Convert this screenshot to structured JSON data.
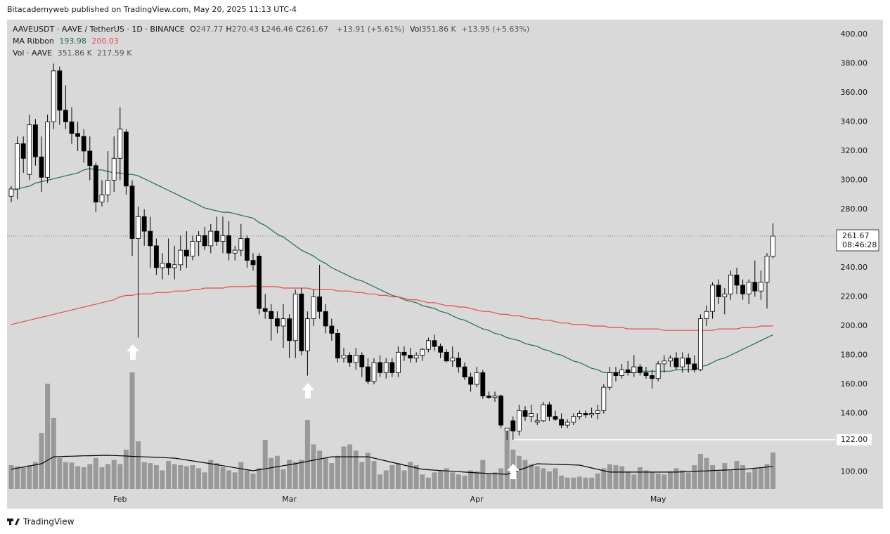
{
  "chart_data": {
    "type": "candlestick",
    "published": "Bitacademyweb published on TradingView.com, May 20, 2025 11:13 UTC-4",
    "symbol": "AAVEUSDT · AAVE / TetherUS · 1D · BINANCE",
    "ohlc_legend": [
      {
        "key": "O",
        "value": "247.77"
      },
      {
        "key": "H",
        "value": "270.43"
      },
      {
        "key": "L",
        "value": "246.46"
      },
      {
        "key": "C",
        "value": "261.67"
      }
    ],
    "change": "+13.91 (+5.61%)",
    "volume_header": {
      "key": "Vol",
      "value": "351.86 K",
      "change": "+13.95 (+5.63%)"
    },
    "footer": "TradingView",
    "categories": [
      null,
      null,
      null,
      null,
      null,
      null,
      null,
      null,
      null,
      null,
      null,
      null,
      null,
      null,
      null,
      null,
      null,
      null,
      "Feb",
      null,
      null,
      null,
      null,
      null,
      null,
      null,
      null,
      null,
      null,
      null,
      null,
      null,
      null,
      null,
      null,
      null,
      null,
      null,
      null,
      null,
      null,
      null,
      null,
      null,
      null,
      null,
      "Mar",
      null,
      null,
      null,
      null,
      null,
      null,
      null,
      null,
      null,
      null,
      null,
      null,
      null,
      null,
      null,
      null,
      null,
      null,
      null,
      null,
      null,
      null,
      null,
      null,
      null,
      null,
      null,
      null,
      null,
      null,
      "Apr",
      null,
      null,
      null,
      null,
      null,
      null,
      null,
      null,
      null,
      null,
      null,
      null,
      null,
      null,
      null,
      null,
      null,
      null,
      null,
      null,
      null,
      null,
      null,
      null,
      null,
      null,
      null,
      null,
      null,
      "May",
      null,
      null,
      null,
      null,
      null,
      null,
      null,
      null,
      null,
      null,
      null,
      null,
      null,
      null,
      null,
      null,
      null,
      null,
      null
    ],
    "open": [
      289,
      294,
      325,
      304,
      338,
      316,
      302,
      340,
      375,
      348,
      340,
      332,
      330,
      320,
      310,
      285,
      290,
      300,
      315,
      333,
      296,
      260,
      275,
      265,
      255,
      240,
      243,
      240,
      242,
      252,
      248,
      258,
      262,
      255,
      265,
      258,
      262,
      250,
      252,
      260,
      245,
      248,
      212,
      210,
      205,
      200,
      205,
      190,
      222,
      183,
      205,
      220,
      210,
      200,
      195,
      178,
      180,
      175,
      180,
      172,
      162,
      175,
      168,
      175,
      168,
      182,
      180,
      178,
      180,
      184,
      190,
      186,
      182,
      176,
      178,
      172,
      165,
      160,
      168,
      152,
      151,
      152,
      128,
      135,
      128,
      142,
      138,
      134,
      135,
      146,
      138,
      136,
      132,
      134,
      138,
      140,
      139,
      140,
      142,
      158,
      168,
      166,
      170,
      168,
      172,
      168,
      166,
      164,
      174,
      176,
      178,
      172,
      178,
      174,
      170,
      205,
      210,
      228,
      220,
      222,
      235,
      228,
      222,
      230,
      224,
      230,
      247.77
    ],
    "high": [
      296,
      330,
      330,
      345,
      342,
      330,
      345,
      380,
      378,
      365,
      350,
      340,
      335,
      330,
      312,
      300,
      320,
      330,
      350,
      335,
      300,
      282,
      280,
      275,
      260,
      250,
      260,
      255,
      262,
      265,
      262,
      265,
      268,
      270,
      275,
      275,
      272,
      255,
      270,
      262,
      250,
      250,
      222,
      215,
      210,
      215,
      208,
      225,
      226,
      210,
      225,
      242,
      215,
      205,
      198,
      185,
      182,
      185,
      182,
      178,
      178,
      180,
      178,
      178,
      186,
      186,
      185,
      182,
      185,
      192,
      194,
      188,
      184,
      186,
      182,
      175,
      168,
      172,
      170,
      155,
      155,
      153,
      130,
      138,
      146,
      145,
      146,
      140,
      148,
      148,
      142,
      140,
      136,
      140,
      142,
      142,
      144,
      146,
      160,
      172,
      172,
      174,
      176,
      180,
      174,
      172,
      170,
      176,
      180,
      180,
      182,
      182,
      181,
      180,
      208,
      214,
      230,
      232,
      226,
      238,
      240,
      232,
      232,
      245,
      238,
      250,
      270.43
    ],
    "low": [
      285,
      287,
      305,
      300,
      310,
      292,
      298,
      335,
      338,
      335,
      325,
      320,
      312,
      300,
      278,
      282,
      285,
      292,
      300,
      290,
      248,
      192,
      255,
      240,
      235,
      232,
      235,
      232,
      238,
      240,
      245,
      248,
      252,
      250,
      255,
      250,
      245,
      245,
      248,
      240,
      238,
      208,
      205,
      190,
      195,
      185,
      178,
      178,
      180,
      166,
      200,
      205,
      195,
      190,
      175,
      175,
      172,
      170,
      165,
      160,
      160,
      165,
      164,
      165,
      165,
      176,
      175,
      175,
      176,
      182,
      183,
      178,
      175,
      172,
      168,
      163,
      155,
      158,
      150,
      150,
      148,
      130,
      122,
      122,
      125,
      135,
      134,
      132,
      134,
      135,
      135,
      130,
      130,
      132,
      136,
      137,
      137,
      136,
      140,
      156,
      162,
      164,
      166,
      165,
      166,
      164,
      157,
      162,
      168,
      172,
      170,
      168,
      168,
      168,
      169,
      200,
      205,
      215,
      208,
      218,
      222,
      218,
      215,
      220,
      218,
      212,
      246.46
    ],
    "close": [
      294,
      325,
      315,
      338,
      316,
      302,
      340,
      375,
      348,
      340,
      332,
      330,
      320,
      310,
      285,
      290,
      300,
      315,
      335,
      296,
      260,
      275,
      265,
      255,
      240,
      243,
      240,
      242,
      252,
      248,
      258,
      262,
      255,
      265,
      258,
      262,
      250,
      252,
      260,
      245,
      242,
      212,
      210,
      205,
      200,
      205,
      190,
      222,
      183,
      205,
      220,
      210,
      200,
      195,
      178,
      180,
      175,
      180,
      172,
      162,
      175,
      168,
      175,
      168,
      182,
      180,
      178,
      180,
      184,
      190,
      186,
      182,
      176,
      178,
      172,
      165,
      160,
      168,
      152,
      151,
      152,
      132,
      130,
      128,
      142,
      138,
      140,
      135,
      146,
      138,
      136,
      132,
      134,
      138,
      140,
      139,
      140,
      142,
      158,
      168,
      166,
      170,
      168,
      172,
      168,
      166,
      164,
      174,
      176,
      178,
      172,
      178,
      174,
      170,
      205,
      210,
      228,
      220,
      222,
      235,
      228,
      222,
      230,
      224,
      230,
      248,
      261.67
    ],
    "colors": {
      "up": "#ffffff",
      "down": "#000000",
      "wick": "#000000"
    },
    "volume": {
      "name": "Vol · AAVE",
      "color": "#999999",
      "last_label": "351.86 K",
      "values": [
        230,
        220,
        210,
        230,
        260,
        540,
        1015,
        685,
        300,
        260,
        255,
        220,
        210,
        240,
        300,
        210,
        240,
        280,
        240,
        380,
        1124,
        460,
        260,
        250,
        230,
        180,
        270,
        240,
        230,
        220,
        230,
        200,
        160,
        280,
        250,
        210,
        180,
        160,
        260,
        180,
        150,
        200,
        474,
        300,
        320,
        190,
        280,
        260,
        280,
        663,
        430,
        370,
        300,
        250,
        320,
        410,
        430,
        370,
        260,
        350,
        270,
        140,
        180,
        230,
        250,
        180,
        260,
        230,
        140,
        110,
        160,
        180,
        200,
        160,
        140,
        130,
        180,
        170,
        280,
        150,
        160,
        200,
        548,
        380,
        320,
        280,
        240,
        220,
        200,
        170,
        200,
        130,
        110,
        110,
        120,
        110,
        110,
        150,
        200,
        240,
        230,
        220,
        170,
        140,
        210,
        180,
        160,
        150,
        140,
        170,
        200,
        180,
        160,
        230,
        338,
        300,
        230,
        170,
        250,
        180,
        270,
        230,
        160,
        200,
        200,
        240,
        351.86
      ]
    },
    "volume_ma": {
      "color": "#000000",
      "last_label": "217.59 K",
      "values": [
        190,
        201,
        212,
        222,
        233,
        244,
        277,
        311,
        313,
        315,
        316,
        318,
        320,
        321,
        322,
        324,
        325,
        323,
        320,
        318,
        315,
        313,
        310,
        308,
        305,
        303,
        300,
        298,
        289,
        280,
        271,
        262,
        253,
        244,
        234,
        225,
        215,
        205,
        195,
        186,
        176,
        186,
        195,
        205,
        215,
        225,
        234,
        244,
        255,
        266,
        278,
        289,
        300,
        311,
        311,
        311,
        311,
        311,
        311,
        311,
        298,
        284,
        271,
        257,
        244,
        230,
        217,
        203,
        190,
        186,
        182,
        178,
        175,
        171,
        167,
        163,
        160,
        156,
        153,
        150,
        148,
        145,
        142,
        162,
        183,
        203,
        224,
        244,
        242,
        240,
        238,
        236,
        234,
        232,
        230,
        217,
        203,
        190,
        176,
        163,
        163,
        163,
        163,
        163,
        163,
        163,
        163,
        163,
        163,
        163,
        163,
        165,
        168,
        170,
        173,
        175,
        178,
        180,
        183,
        185,
        188,
        190,
        195,
        201,
        206,
        212,
        217.59
      ]
    },
    "ma_ribbon": {
      "name": "MA Ribbon",
      "series": [
        {
          "color": "#1e6e50",
          "value_label": "193.98",
          "values": [
            293,
            294,
            295,
            296,
            298,
            299,
            300,
            301,
            302,
            303,
            304,
            305,
            307,
            308,
            307,
            307,
            306,
            305,
            305,
            304,
            304,
            303,
            301,
            299,
            297,
            295,
            293,
            291,
            289,
            287,
            285,
            283,
            281,
            280,
            279,
            278,
            278,
            277,
            276,
            275,
            274,
            271,
            269,
            266,
            263,
            261,
            258,
            255,
            252,
            250,
            248,
            245,
            243,
            240,
            238,
            236,
            234,
            232,
            231,
            229,
            227,
            225,
            223,
            221,
            220,
            218,
            217,
            216,
            214,
            213,
            212,
            210,
            209,
            207,
            205,
            204,
            202,
            200,
            198,
            197,
            195,
            194,
            192,
            191,
            190,
            188,
            187,
            186,
            184,
            183,
            181,
            180,
            178,
            176,
            175,
            173,
            171,
            170,
            168,
            168,
            168,
            168,
            168,
            168,
            169,
            169,
            169,
            169,
            169,
            169,
            170,
            170,
            170,
            170,
            172,
            173,
            175,
            177,
            178,
            180,
            182,
            184,
            186,
            188,
            190,
            192,
            193.98
          ]
        },
        {
          "color": "#e84a4a",
          "value_label": "200.03",
          "values": [
            201,
            202,
            203,
            204,
            205,
            206,
            207,
            208,
            209,
            210,
            211,
            212,
            213,
            214,
            215,
            216,
            217,
            218,
            220,
            221,
            221,
            222,
            222,
            222,
            223,
            223,
            223,
            224,
            224,
            224,
            225,
            225,
            226,
            226,
            226,
            226,
            227,
            227,
            227,
            227,
            227.5,
            227,
            227,
            227,
            227,
            226,
            226,
            226,
            226,
            226,
            225,
            225,
            225,
            225,
            224,
            224,
            224,
            223,
            223,
            222,
            222,
            221,
            221,
            220,
            220,
            219,
            218,
            218,
            217,
            216,
            216,
            215,
            214,
            214,
            213,
            213,
            212,
            211,
            210,
            210,
            209,
            208,
            208,
            207,
            207,
            206,
            205,
            205,
            204,
            204,
            203,
            202,
            202,
            201,
            201,
            201,
            200,
            200,
            200,
            199,
            199,
            199,
            198,
            198,
            198,
            198,
            198,
            198,
            197,
            197,
            197,
            197,
            197,
            197,
            197,
            197,
            197,
            198,
            198,
            198,
            198,
            199,
            199,
            199,
            200,
            200,
            200.03
          ]
        }
      ]
    },
    "ylim": [
      74.7,
      410.1
    ],
    "yticks": [
      {
        "value": 100,
        "label": "100.00"
      },
      {
        "value": 140,
        "label": "140.00"
      },
      {
        "value": 160,
        "label": "160.00"
      },
      {
        "value": 180,
        "label": "180.00"
      },
      {
        "value": 200,
        "label": "200.00"
      },
      {
        "value": 220,
        "label": "220.00"
      },
      {
        "value": 240,
        "label": "240.00"
      },
      {
        "value": 260,
        "label": "260.00"
      },
      {
        "value": 280,
        "label": "280.00"
      },
      {
        "value": 300,
        "label": "300.00"
      },
      {
        "value": 320,
        "label": "320.00"
      },
      {
        "value": 340,
        "label": "340.00"
      },
      {
        "value": 360,
        "label": "360.00"
      },
      {
        "value": 380,
        "label": "380.00"
      },
      {
        "value": 400,
        "label": "400.00"
      }
    ],
    "grid": false,
    "horizontal_line": {
      "value": 122,
      "label": "122.00",
      "color": "#ffffff"
    },
    "countdown": "08:46:28"
  }
}
